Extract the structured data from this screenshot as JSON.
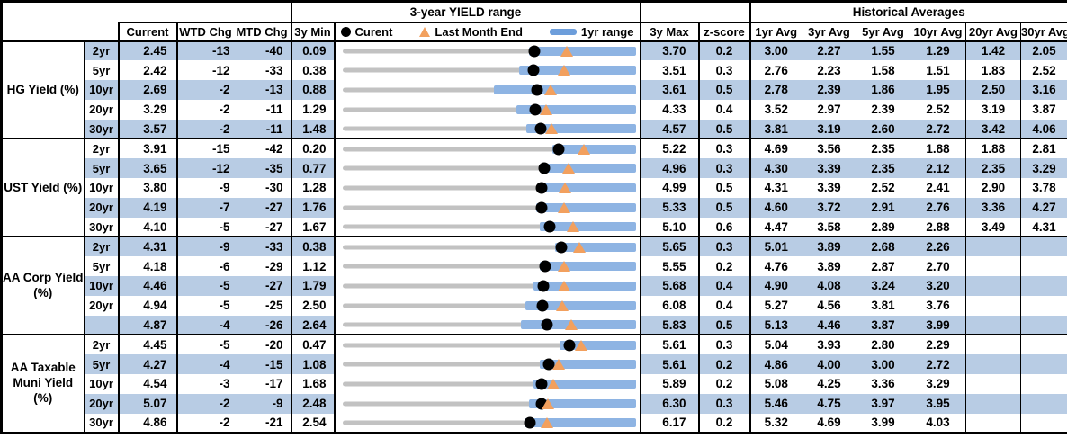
{
  "chart_title": "3-year YIELD range",
  "hist_title": "Historical Averages",
  "cols": {
    "current": "Current",
    "wtd": "WTD Chg",
    "mtd": "MTD Chg",
    "min3y": "3y Min",
    "max3y": "3y Max",
    "z": "z-score",
    "avgs": [
      "1yr Avg",
      "3yr Avg",
      "5yr Avg",
      "10yr Avg",
      "20yr Avg",
      "30yr Avg"
    ]
  },
  "legend": {
    "current": "Curent",
    "last_month_end": "Last Month End",
    "range": "1yr range"
  },
  "colors": {
    "stripe": "#B8CCE4",
    "range_bar": "#8EB4E3",
    "legend_dash": "#6D9EDB",
    "track_gray": "#C2C2C2",
    "marker_orange": "#F2A05E",
    "marker_black": "#000000"
  },
  "chart_data": {
    "type": "table",
    "note": "Each row renders a bullet-style range chart: gray track spans 3y Min..3y Max, blue bar is the 1yr range (est. low to 3y Max), black dot = Current, orange triangle = Last Month End (Current - MTD Chg bp).",
    "sections": [
      {
        "label": "HG Yield (%)",
        "rows": [
          {
            "tenor": "2yr",
            "current": "2.45",
            "wtd_chg": "-13",
            "mtd_chg": "-40",
            "min_3y": "0.09",
            "max_3y": "3.70",
            "z_score": "0.2",
            "yr1_low_est": 2.39,
            "avgs": [
              "3.00",
              "2.27",
              "1.55",
              "1.29",
              "1.42",
              "2.05"
            ],
            "stripe": true
          },
          {
            "tenor": "5yr",
            "current": "2.42",
            "wtd_chg": "-12",
            "mtd_chg": "-33",
            "min_3y": "0.38",
            "max_3y": "3.51",
            "z_score": "0.3",
            "yr1_low_est": 2.27,
            "avgs": [
              "2.76",
              "2.23",
              "1.58",
              "1.51",
              "1.83",
              "2.52"
            ],
            "stripe": false
          },
          {
            "tenor": "10yr",
            "current": "2.69",
            "wtd_chg": "-2",
            "mtd_chg": "-13",
            "min_3y": "0.88",
            "max_3y": "3.61",
            "z_score": "0.5",
            "yr1_low_est": 2.29,
            "avgs": [
              "2.78",
              "2.39",
              "1.86",
              "1.95",
              "2.50",
              "3.16"
            ],
            "stripe": true
          },
          {
            "tenor": "20yr",
            "current": "3.29",
            "wtd_chg": "-2",
            "mtd_chg": "-11",
            "min_3y": "1.29",
            "max_3y": "4.33",
            "z_score": "0.4",
            "yr1_low_est": 3.09,
            "avgs": [
              "3.52",
              "2.97",
              "2.39",
              "2.52",
              "3.19",
              "3.87"
            ],
            "stripe": false
          },
          {
            "tenor": "30yr",
            "current": "3.57",
            "wtd_chg": "-2",
            "mtd_chg": "-11",
            "min_3y": "1.48",
            "max_3y": "4.57",
            "z_score": "0.5",
            "yr1_low_est": 3.42,
            "avgs": [
              "3.81",
              "3.19",
              "2.60",
              "2.72",
              "3.42",
              "4.06"
            ],
            "stripe": true
          }
        ]
      },
      {
        "label": "UST Yield (%)",
        "rows": [
          {
            "tenor": "2yr",
            "current": "3.91",
            "wtd_chg": "-15",
            "mtd_chg": "-42",
            "min_3y": "0.20",
            "max_3y": "5.22",
            "z_score": "0.3",
            "yr1_low_est": 3.8,
            "avgs": [
              "4.69",
              "3.56",
              "2.35",
              "1.88",
              "1.88",
              "2.81"
            ],
            "stripe": false
          },
          {
            "tenor": "5yr",
            "current": "3.65",
            "wtd_chg": "-12",
            "mtd_chg": "-35",
            "min_3y": "0.77",
            "max_3y": "4.96",
            "z_score": "0.3",
            "yr1_low_est": 3.6,
            "avgs": [
              "4.30",
              "3.39",
              "2.35",
              "2.12",
              "2.35",
              "3.29"
            ],
            "stripe": true
          },
          {
            "tenor": "10yr",
            "current": "3.80",
            "wtd_chg": "-9",
            "mtd_chg": "-30",
            "min_3y": "1.28",
            "max_3y": "4.99",
            "z_score": "0.5",
            "yr1_low_est": 3.74,
            "avgs": [
              "4.31",
              "3.39",
              "2.52",
              "2.41",
              "2.90",
              "3.78"
            ],
            "stripe": false
          },
          {
            "tenor": "20yr",
            "current": "4.19",
            "wtd_chg": "-7",
            "mtd_chg": "-27",
            "min_3y": "1.76",
            "max_3y": "5.33",
            "z_score": "0.5",
            "yr1_low_est": 4.12,
            "avgs": [
              "4.60",
              "3.72",
              "2.91",
              "2.76",
              "3.36",
              "4.27"
            ],
            "stripe": true
          },
          {
            "tenor": "30yr",
            "current": "4.10",
            "wtd_chg": "-5",
            "mtd_chg": "-27",
            "min_3y": "1.67",
            "max_3y": "5.10",
            "z_score": "0.6",
            "yr1_low_est": 3.98,
            "avgs": [
              "4.47",
              "3.58",
              "2.89",
              "2.88",
              "3.49",
              "4.31"
            ],
            "stripe": false
          }
        ]
      },
      {
        "label": "AA Corp Yield\n(%)",
        "rows": [
          {
            "tenor": "2yr",
            "current": "4.31",
            "wtd_chg": "-9",
            "mtd_chg": "-33",
            "min_3y": "0.38",
            "max_3y": "5.65",
            "z_score": "0.3",
            "yr1_low_est": 4.2,
            "avgs": [
              "5.01",
              "3.89",
              "2.68",
              "2.26",
              "",
              ""
            ],
            "stripe": true
          },
          {
            "tenor": "5yr",
            "current": "4.18",
            "wtd_chg": "-6",
            "mtd_chg": "-29",
            "min_3y": "1.12",
            "max_3y": "5.55",
            "z_score": "0.2",
            "yr1_low_est": 4.1,
            "avgs": [
              "4.76",
              "3.89",
              "2.87",
              "2.70",
              "",
              ""
            ],
            "stripe": false
          },
          {
            "tenor": "10yr",
            "current": "4.46",
            "wtd_chg": "-5",
            "mtd_chg": "-27",
            "min_3y": "1.79",
            "max_3y": "5.68",
            "z_score": "0.4",
            "yr1_low_est": 4.33,
            "avgs": [
              "4.90",
              "4.08",
              "3.24",
              "3.20",
              "",
              ""
            ],
            "stripe": true
          },
          {
            "tenor": "20yr",
            "current": "4.94",
            "wtd_chg": "-5",
            "mtd_chg": "-25",
            "min_3y": "2.50",
            "max_3y": "6.08",
            "z_score": "0.4",
            "yr1_low_est": 4.73,
            "avgs": [
              "5.27",
              "4.56",
              "3.81",
              "3.76",
              "",
              ""
            ],
            "stripe": false
          },
          {
            "tenor": "",
            "current": "4.87",
            "wtd_chg": "-4",
            "mtd_chg": "-26",
            "min_3y": "2.64",
            "max_3y": "5.83",
            "z_score": "0.5",
            "yr1_low_est": 4.58,
            "avgs": [
              "5.13",
              "4.46",
              "3.87",
              "3.99",
              "",
              ""
            ],
            "stripe": true
          }
        ]
      },
      {
        "label": "AA Taxable\nMuni Yield\n(%)",
        "rows": [
          {
            "tenor": "2yr",
            "current": "4.45",
            "wtd_chg": "-5",
            "mtd_chg": "-20",
            "min_3y": "0.47",
            "max_3y": "5.61",
            "z_score": "0.3",
            "yr1_low_est": 4.27,
            "avgs": [
              "5.04",
              "3.93",
              "2.80",
              "2.29",
              "",
              ""
            ],
            "stripe": false
          },
          {
            "tenor": "5yr",
            "current": "4.27",
            "wtd_chg": "-4",
            "mtd_chg": "-15",
            "min_3y": "1.08",
            "max_3y": "5.61",
            "z_score": "0.2",
            "yr1_low_est": 4.13,
            "avgs": [
              "4.86",
              "4.00",
              "3.00",
              "2.72",
              "",
              ""
            ],
            "stripe": true
          },
          {
            "tenor": "10yr",
            "current": "4.54",
            "wtd_chg": "-3",
            "mtd_chg": "-17",
            "min_3y": "1.68",
            "max_3y": "5.89",
            "z_score": "0.2",
            "yr1_low_est": 4.43,
            "avgs": [
              "5.08",
              "4.25",
              "3.36",
              "3.29",
              "",
              ""
            ],
            "stripe": false
          },
          {
            "tenor": "20yr",
            "current": "5.07",
            "wtd_chg": "-2",
            "mtd_chg": "-9",
            "min_3y": "2.48",
            "max_3y": "6.30",
            "z_score": "0.3",
            "yr1_low_est": 4.91,
            "avgs": [
              "5.46",
              "4.75",
              "3.97",
              "3.95",
              "",
              ""
            ],
            "stripe": true
          },
          {
            "tenor": "30yr",
            "current": "4.86",
            "wtd_chg": "-2",
            "mtd_chg": "-21",
            "min_3y": "2.54",
            "max_3y": "6.17",
            "z_score": "0.2",
            "yr1_low_est": 4.79,
            "avgs": [
              "5.32",
              "4.69",
              "3.99",
              "4.03",
              "",
              ""
            ],
            "stripe": false
          }
        ]
      }
    ]
  }
}
